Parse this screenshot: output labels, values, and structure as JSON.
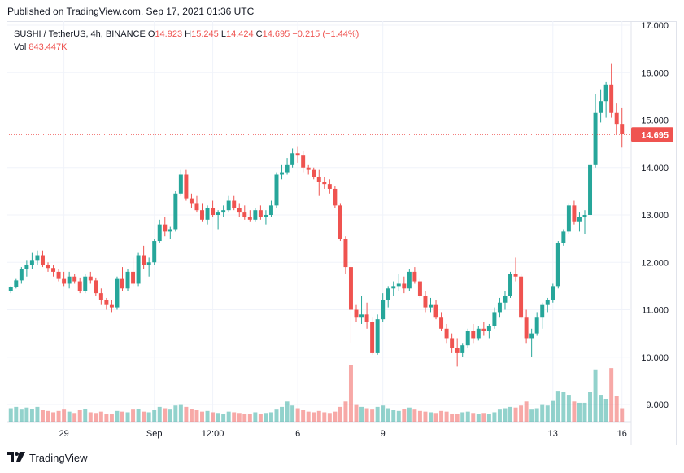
{
  "header": {
    "published": "Published on TradingView.com, Sep 17, 2021 01:36 UTC"
  },
  "legend": {
    "symbol": "SUSHI / TetherUS, 4h, BINANCE",
    "o_label": "O",
    "o_value": "14.923",
    "h_label": "H",
    "h_value": "15.245",
    "l_label": "L",
    "l_value": "14.424",
    "c_label": "C",
    "c_value": "14.695",
    "change": "−0.215 (−1.44%)",
    "vol_label": "Vol",
    "vol_value": "843.447K"
  },
  "footer": {
    "logo_icon": "tradingview-logo-icon",
    "brand": "TradingView"
  },
  "colors": {
    "up": "#26a69a",
    "down": "#ef5350",
    "grid": "#f0f3fa",
    "price_line": "#ef5350"
  },
  "chart_data": {
    "type": "candlestick",
    "y_axis_ticks": [
      "17.000",
      "16.000",
      "15.000",
      "14.000",
      "13.000",
      "12.000",
      "11.000",
      "10.000",
      "9.000"
    ],
    "x_axis_ticks": [
      "29",
      "Sep",
      "12:00",
      "6",
      "9",
      "13",
      "16"
    ],
    "current_price_label": "14.695",
    "ylim": [
      8.75,
      17.0
    ],
    "candles": [
      [
        11.4,
        11.5,
        11.35,
        11.48
      ],
      [
        11.48,
        11.65,
        11.45,
        11.62
      ],
      [
        11.62,
        11.9,
        11.55,
        11.85
      ],
      [
        11.85,
        12.05,
        11.7,
        11.95
      ],
      [
        11.95,
        12.2,
        11.85,
        12.05
      ],
      [
        12.05,
        12.25,
        11.95,
        12.15
      ],
      [
        12.15,
        12.25,
        11.9,
        11.95
      ],
      [
        11.95,
        12.0,
        11.8,
        11.88
      ],
      [
        11.88,
        11.95,
        11.7,
        11.8
      ],
      [
        11.8,
        11.85,
        11.6,
        11.65
      ],
      [
        11.65,
        11.8,
        11.5,
        11.55
      ],
      [
        11.55,
        11.8,
        11.45,
        11.7
      ],
      [
        11.7,
        11.75,
        11.55,
        11.6
      ],
      [
        11.6,
        11.68,
        11.35,
        11.4
      ],
      [
        11.4,
        11.75,
        11.35,
        11.7
      ],
      [
        11.7,
        11.8,
        11.55,
        11.62
      ],
      [
        11.62,
        11.68,
        11.3,
        11.35
      ],
      [
        11.35,
        11.45,
        11.1,
        11.2
      ],
      [
        11.2,
        11.25,
        11.0,
        11.1
      ],
      [
        11.1,
        11.2,
        10.95,
        11.05
      ],
      [
        11.05,
        11.7,
        11.0,
        11.65
      ],
      [
        11.65,
        11.9,
        11.4,
        11.45
      ],
      [
        11.45,
        11.85,
        11.4,
        11.8
      ],
      [
        11.8,
        12.1,
        11.5,
        11.55
      ],
      [
        11.55,
        12.2,
        11.5,
        12.15
      ],
      [
        12.15,
        12.35,
        11.85,
        11.95
      ],
      [
        11.95,
        12.1,
        11.7,
        12.0
      ],
      [
        12.0,
        12.5,
        11.95,
        12.45
      ],
      [
        12.45,
        12.9,
        12.4,
        12.8
      ],
      [
        12.8,
        12.95,
        12.55,
        12.65
      ],
      [
        12.65,
        12.75,
        12.5,
        12.7
      ],
      [
        12.7,
        13.5,
        12.65,
        13.45
      ],
      [
        13.45,
        13.95,
        13.4,
        13.85
      ],
      [
        13.85,
        13.95,
        13.3,
        13.35
      ],
      [
        13.35,
        13.45,
        13.15,
        13.25
      ],
      [
        13.25,
        13.4,
        13.05,
        13.1
      ],
      [
        13.1,
        13.25,
        12.85,
        12.9
      ],
      [
        12.9,
        13.2,
        12.8,
        13.15
      ],
      [
        13.15,
        13.3,
        12.95,
        13.0
      ],
      [
        13.0,
        13.1,
        12.7,
        13.05
      ],
      [
        13.05,
        13.2,
        12.95,
        13.1
      ],
      [
        13.1,
        13.4,
        13.05,
        13.3
      ],
      [
        13.3,
        13.4,
        13.1,
        13.15
      ],
      [
        13.15,
        13.25,
        12.95,
        13.05
      ],
      [
        13.05,
        13.2,
        12.9,
        12.95
      ],
      [
        12.95,
        13.1,
        12.85,
        12.9
      ],
      [
        12.9,
        13.15,
        12.85,
        13.1
      ],
      [
        13.1,
        13.2,
        12.9,
        12.95
      ],
      [
        12.95,
        13.1,
        12.8,
        13.0
      ],
      [
        13.0,
        13.3,
        12.95,
        13.2
      ],
      [
        13.2,
        13.9,
        13.15,
        13.85
      ],
      [
        13.85,
        14.05,
        13.75,
        13.9
      ],
      [
        13.9,
        14.2,
        13.85,
        14.05
      ],
      [
        14.05,
        14.4,
        14.0,
        14.3
      ],
      [
        14.3,
        14.45,
        14.1,
        14.25
      ],
      [
        14.25,
        14.35,
        13.9,
        14.0
      ],
      [
        14.0,
        14.05,
        13.85,
        13.95
      ],
      [
        13.95,
        14.0,
        13.75,
        13.8
      ],
      [
        13.8,
        13.95,
        13.4,
        13.7
      ],
      [
        13.7,
        13.8,
        13.55,
        13.65
      ],
      [
        13.65,
        13.75,
        13.45,
        13.55
      ],
      [
        13.55,
        13.6,
        13.15,
        13.2
      ],
      [
        13.2,
        13.25,
        12.45,
        12.5
      ],
      [
        12.5,
        12.55,
        11.75,
        11.9
      ],
      [
        11.9,
        11.95,
        10.3,
        11.0
      ],
      [
        11.0,
        11.1,
        10.75,
        10.85
      ],
      [
        10.85,
        11.3,
        10.7,
        10.9
      ],
      [
        10.9,
        11.15,
        10.6,
        10.75
      ],
      [
        10.75,
        10.85,
        10.05,
        10.1
      ],
      [
        10.1,
        10.9,
        10.05,
        10.8
      ],
      [
        10.8,
        11.35,
        10.75,
        11.2
      ],
      [
        11.2,
        11.5,
        11.05,
        11.45
      ],
      [
        11.45,
        11.6,
        11.3,
        11.5
      ],
      [
        11.5,
        11.75,
        11.4,
        11.55
      ],
      [
        11.55,
        11.7,
        11.35,
        11.45
      ],
      [
        11.45,
        11.85,
        11.4,
        11.8
      ],
      [
        11.8,
        11.9,
        11.55,
        11.6
      ],
      [
        11.6,
        11.65,
        11.25,
        11.3
      ],
      [
        11.3,
        11.4,
        10.95,
        11.05
      ],
      [
        11.05,
        11.25,
        10.95,
        11.1
      ],
      [
        11.1,
        11.2,
        10.8,
        10.85
      ],
      [
        10.85,
        10.95,
        10.55,
        10.6
      ],
      [
        10.6,
        10.7,
        10.3,
        10.4
      ],
      [
        10.4,
        10.5,
        10.1,
        10.2
      ],
      [
        10.2,
        10.4,
        9.8,
        10.1
      ],
      [
        10.1,
        10.3,
        10.0,
        10.25
      ],
      [
        10.25,
        10.6,
        10.2,
        10.55
      ],
      [
        10.55,
        10.7,
        10.3,
        10.4
      ],
      [
        10.4,
        10.65,
        10.35,
        10.6
      ],
      [
        10.6,
        10.75,
        10.45,
        10.55
      ],
      [
        10.55,
        10.7,
        10.4,
        10.65
      ],
      [
        10.65,
        11.05,
        10.6,
        10.95
      ],
      [
        10.95,
        11.25,
        10.85,
        11.15
      ],
      [
        11.15,
        11.4,
        11.0,
        11.3
      ],
      [
        11.3,
        11.8,
        11.25,
        11.75
      ],
      [
        11.75,
        12.1,
        11.6,
        11.7
      ],
      [
        11.7,
        11.75,
        10.8,
        10.85
      ],
      [
        10.85,
        11.0,
        10.3,
        10.4
      ],
      [
        10.4,
        10.6,
        10.0,
        10.5
      ],
      [
        10.5,
        10.95,
        10.45,
        10.85
      ],
      [
        10.85,
        11.15,
        10.6,
        11.1
      ],
      [
        11.1,
        11.25,
        10.95,
        11.2
      ],
      [
        11.2,
        11.55,
        11.15,
        11.5
      ],
      [
        11.5,
        12.45,
        11.45,
        12.4
      ],
      [
        12.4,
        12.7,
        12.35,
        12.65
      ],
      [
        12.65,
        13.25,
        12.6,
        13.2
      ],
      [
        13.2,
        13.3,
        12.8,
        12.85
      ],
      [
        12.85,
        13.05,
        12.65,
        12.95
      ],
      [
        12.95,
        13.1,
        12.6,
        13.0
      ],
      [
        13.0,
        14.1,
        12.95,
        14.05
      ],
      [
        14.05,
        15.55,
        14.0,
        15.15
      ],
      [
        15.15,
        15.65,
        14.95,
        15.4
      ],
      [
        15.4,
        15.8,
        15.05,
        15.75
      ],
      [
        15.75,
        16.2,
        15.05,
        15.15
      ],
      [
        15.15,
        15.35,
        14.7,
        14.92
      ],
      [
        14.92,
        15.25,
        14.42,
        14.7
      ]
    ],
    "volume": [
      20,
      22,
      18,
      21,
      19,
      22,
      17,
      16,
      14,
      16,
      18,
      15,
      13,
      17,
      19,
      14,
      13,
      15,
      12,
      11,
      16,
      15,
      14,
      18,
      19,
      15,
      14,
      17,
      22,
      20,
      18,
      24,
      26,
      22,
      19,
      17,
      15,
      16,
      14,
      13,
      12,
      15,
      14,
      13,
      12,
      11,
      14,
      12,
      13,
      14,
      18,
      22,
      30,
      24,
      20,
      17,
      15,
      14,
      16,
      14,
      13,
      15,
      22,
      30,
      85,
      26,
      22,
      20,
      18,
      22,
      24,
      20,
      17,
      16,
      19,
      21,
      18,
      16,
      15,
      14,
      13,
      16,
      15,
      12,
      12,
      14,
      15,
      13,
      11,
      13,
      12,
      14,
      18,
      20,
      22,
      21,
      24,
      30,
      18,
      20,
      26,
      24,
      32,
      46,
      44,
      40,
      30,
      28,
      28,
      44,
      78,
      40,
      34,
      80,
      38,
      20
    ]
  }
}
